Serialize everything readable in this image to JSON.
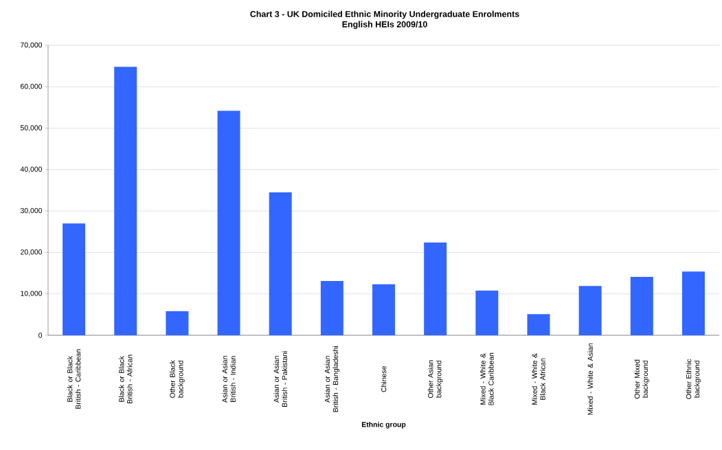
{
  "chart_data": {
    "type": "bar",
    "title": "Chart 3 - UK Domiciled Ethnic Minority Undergraduate Enrolments",
    "subtitle": "English HEIs 2009/10",
    "xlabel": "Ethnic group",
    "categories": [
      "Black or Black British - Caribbean",
      "Black or Black British - African",
      "Other Black background",
      "Asian or Asian British - Indian",
      "Asian or Asian British - Pakistani",
      "Asian or Asian British - Bangladeshi",
      "Chinese",
      "Other Asian background",
      "Mixed - White & Black Caribbean",
      "Mixed - White & Black African",
      "Mixed - White & Asian",
      "Other Mixed background",
      "Other Ethnic background"
    ],
    "values": [
      27000,
      64800,
      5800,
      54200,
      34500,
      13100,
      12300,
      22400,
      10800,
      5100,
      11900,
      14100,
      15400
    ],
    "color": "#3366ff",
    "ylim": [
      0,
      70000
    ],
    "yticks": [
      0,
      {
        "value": 10000,
        "label": "10,000"
      },
      {
        "value": 20000,
        "label": "20,000"
      },
      {
        "value": 30000,
        "label": "30,000"
      },
      {
        "value": 40000,
        "label": "40,000"
      },
      {
        "value": 50000,
        "label": "50,000"
      },
      {
        "value": 60000,
        "label": "60,000"
      },
      {
        "value": 70000,
        "label": "70,000"
      }
    ],
    "grid": "y"
  }
}
